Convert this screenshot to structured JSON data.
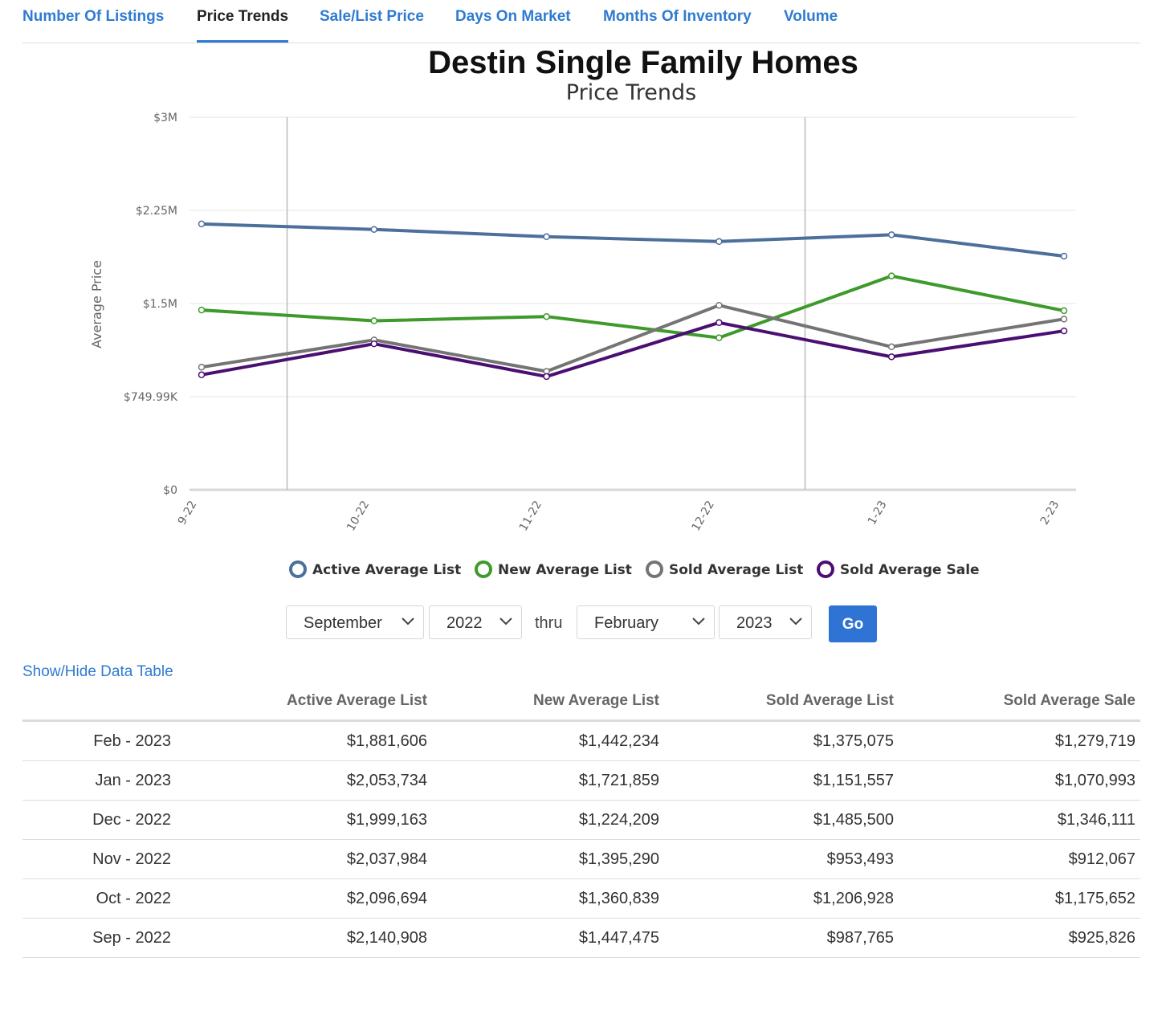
{
  "tabs": [
    {
      "label": "Number Of Listings",
      "active": false
    },
    {
      "label": "Price Trends",
      "active": true
    },
    {
      "label": "Sale/List Price",
      "active": false
    },
    {
      "label": "Days On Market",
      "active": false
    },
    {
      "label": "Months Of Inventory",
      "active": false
    },
    {
      "label": "Volume",
      "active": false
    }
  ],
  "chart_data": {
    "type": "line",
    "title": "Destin Single Family Homes",
    "subtitle": "Price Trends",
    "xlabel": "",
    "ylabel": "Average Price",
    "categories": [
      "9-22",
      "10-22",
      "11-22",
      "12-22",
      "1-23",
      "2-23"
    ],
    "y_ticks": [
      "$0",
      "$749.99K",
      "$1.5M",
      "$2.25M",
      "$3M"
    ],
    "ylim": [
      0,
      3000000
    ],
    "grid": true,
    "legend_position": "bottom",
    "series": [
      {
        "name": "Active Average List",
        "color": "#4c6f9b",
        "values": [
          2140908,
          2096694,
          2037984,
          1999163,
          2053734,
          1881606
        ]
      },
      {
        "name": "New Average List",
        "color": "#3e9a2a",
        "values": [
          1447475,
          1360839,
          1395290,
          1224209,
          1721859,
          1442234
        ]
      },
      {
        "name": "Sold Average List",
        "color": "#747474",
        "values": [
          987765,
          1206928,
          953493,
          1485500,
          1151557,
          1375075
        ]
      },
      {
        "name": "Sold Average Sale",
        "color": "#4b0e73",
        "values": [
          925826,
          1175652,
          912067,
          1346111,
          1070993,
          1279719
        ]
      }
    ]
  },
  "controls": {
    "from_month": "September",
    "from_year": "2022",
    "thru_label": "thru",
    "to_month": "February",
    "to_year": "2023",
    "go_label": "Go"
  },
  "toggle_label": "Show/Hide Data Table",
  "table": {
    "headers": [
      "",
      "Active Average List",
      "New Average List",
      "Sold Average List",
      "Sold Average Sale"
    ],
    "rows": [
      [
        "Feb - 2023",
        "$1,881,606",
        "$1,442,234",
        "$1,375,075",
        "$1,279,719"
      ],
      [
        "Jan - 2023",
        "$2,053,734",
        "$1,721,859",
        "$1,151,557",
        "$1,070,993"
      ],
      [
        "Dec - 2022",
        "$1,999,163",
        "$1,224,209",
        "$1,485,500",
        "$1,346,111"
      ],
      [
        "Nov - 2022",
        "$2,037,984",
        "$1,395,290",
        "$953,493",
        "$912,067"
      ],
      [
        "Oct - 2022",
        "$2,096,694",
        "$1,360,839",
        "$1,206,928",
        "$1,175,652"
      ],
      [
        "Sep - 2022",
        "$2,140,908",
        "$1,447,475",
        "$987,765",
        "$925,826"
      ]
    ]
  }
}
